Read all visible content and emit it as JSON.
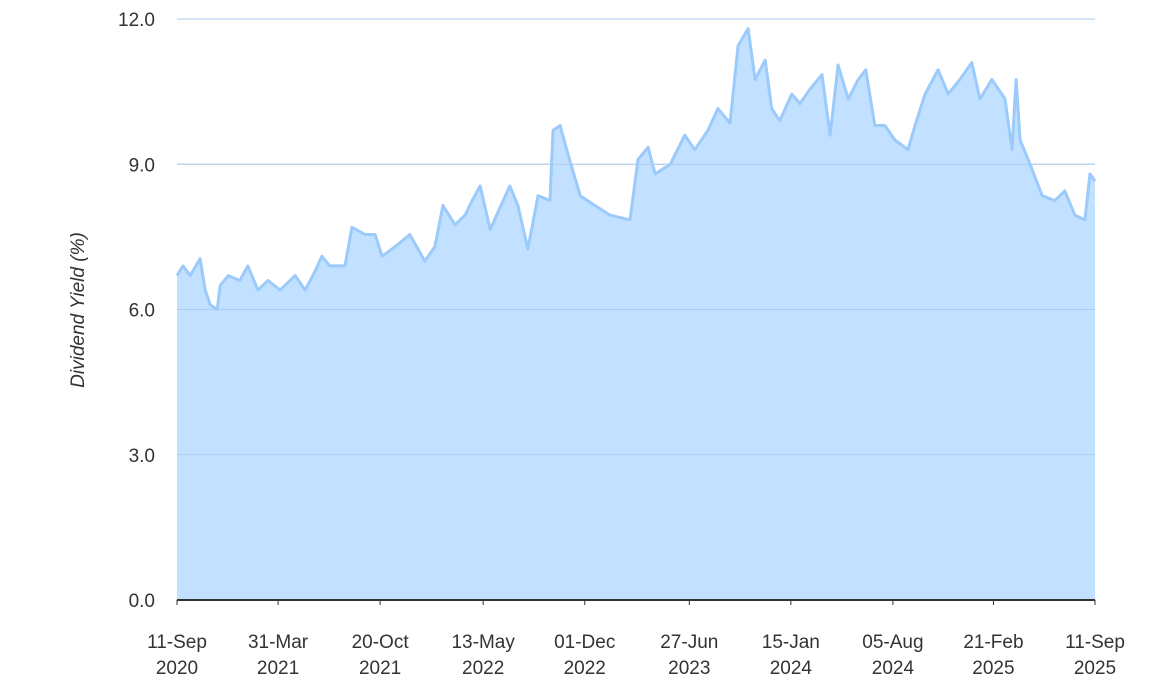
{
  "chart_data": {
    "type": "area",
    "y_label": "Dividend Yield (%)",
    "color": "#9ccbfb",
    "fill": "#c2e0ff",
    "grid": true,
    "ylim": [
      0,
      12
    ],
    "yticks": [
      {
        "value": 0,
        "label": "0.0"
      },
      {
        "value": 3,
        "label": "3.0"
      },
      {
        "value": 6,
        "label": "6.0"
      },
      {
        "value": 9,
        "label": "9.0"
      },
      {
        "value": 12,
        "label": "12.0"
      }
    ],
    "xlim": [
      "2020-09-11",
      "2025-09-11"
    ],
    "xticks": [
      {
        "value": "2020-09-11",
        "label": "11-Sep 2020"
      },
      {
        "value": "2021-03-31",
        "label": "31-Mar 2021"
      },
      {
        "value": "2021-10-20",
        "label": "20-Oct 2021"
      },
      {
        "value": "2022-05-13",
        "label": "13-May 2022"
      },
      {
        "value": "2022-12-01",
        "label": "01-Dec 2022"
      },
      {
        "value": "2023-06-27",
        "label": "27-Jun 2023"
      },
      {
        "value": "2024-01-15",
        "label": "15-Jan 2024"
      },
      {
        "value": "2024-08-05",
        "label": "05-Aug 2024"
      },
      {
        "value": "2025-02-21",
        "label": "21-Feb 2025"
      },
      {
        "value": "2025-09-11",
        "label": "11-Sep 2025"
      }
    ],
    "x": [
      "2020-09-11",
      "2020-09-23",
      "2020-10-07",
      "2020-10-27",
      "2020-11-06",
      "2020-11-16",
      "2020-11-30",
      "2020-12-06",
      "2020-12-22",
      "2021-01-14",
      "2021-01-30",
      "2021-02-19",
      "2021-03-11",
      "2021-04-04",
      "2021-05-04",
      "2021-05-24",
      "2021-06-13",
      "2021-06-26",
      "2021-07-12",
      "2021-08-11",
      "2021-08-25",
      "2021-09-20",
      "2021-10-10",
      "2021-10-24",
      "2021-11-19",
      "2021-12-18",
      "2022-01-17",
      "2022-02-06",
      "2022-02-22",
      "2022-03-18",
      "2022-04-07",
      "2022-04-21",
      "2022-05-07",
      "2022-05-27",
      "2022-06-11",
      "2022-07-05",
      "2022-07-21",
      "2022-08-10",
      "2022-08-30",
      "2022-09-23",
      "2022-09-29",
      "2022-10-13",
      "2022-10-29",
      "2022-11-22",
      "2022-12-21",
      "2023-01-20",
      "2023-03-01",
      "2023-03-17",
      "2023-04-06",
      "2023-04-20",
      "2023-05-20",
      "2023-06-18",
      "2023-07-08",
      "2023-08-03",
      "2023-08-23",
      "2023-09-16",
      "2023-10-02",
      "2023-10-22",
      "2023-11-05",
      "2023-11-25",
      "2023-12-08",
      "2023-12-24",
      "2024-01-17",
      "2024-02-02",
      "2024-02-22",
      "2024-03-17",
      "2024-04-02",
      "2024-04-18",
      "2024-05-08",
      "2024-05-28",
      "2024-06-12",
      "2024-06-30",
      "2024-07-20",
      "2024-08-09",
      "2024-09-04",
      "2024-09-18",
      "2024-10-08",
      "2024-11-03",
      "2024-11-23",
      "2024-12-16",
      "2025-01-09",
      "2025-01-25",
      "2025-02-18",
      "2025-03-16",
      "2025-03-30",
      "2025-04-07",
      "2025-04-15",
      "2025-05-05",
      "2025-05-29",
      "2025-06-23",
      "2025-07-13",
      "2025-08-02",
      "2025-08-22",
      "2025-09-01",
      "2025-09-11"
    ],
    "values": [
      6.7,
      6.9,
      6.7,
      7.05,
      6.4,
      6.1,
      6.0,
      6.5,
      6.7,
      6.6,
      6.9,
      6.4,
      6.6,
      6.4,
      6.7,
      6.4,
      6.8,
      7.1,
      6.9,
      6.9,
      7.7,
      7.55,
      7.55,
      7.1,
      7.3,
      7.55,
      7.0,
      7.3,
      8.15,
      7.75,
      7.95,
      8.25,
      8.55,
      7.65,
      8.0,
      8.55,
      8.15,
      7.25,
      8.35,
      8.25,
      9.7,
      9.8,
      9.2,
      8.35,
      8.15,
      7.95,
      7.85,
      9.1,
      9.35,
      8.8,
      9.0,
      9.6,
      9.3,
      9.7,
      10.15,
      9.85,
      11.45,
      11.8,
      10.75,
      11.15,
      10.15,
      9.9,
      10.45,
      10.25,
      10.55,
      10.85,
      9.6,
      11.05,
      10.35,
      10.75,
      10.95,
      9.8,
      9.8,
      9.5,
      9.3,
      9.8,
      10.45,
      10.95,
      10.45,
      10.75,
      11.1,
      10.35,
      10.75,
      10.35,
      9.3,
      10.75,
      9.5,
      9.0,
      8.35,
      8.25,
      8.45,
      7.95,
      7.85,
      8.8,
      8.65
    ]
  }
}
